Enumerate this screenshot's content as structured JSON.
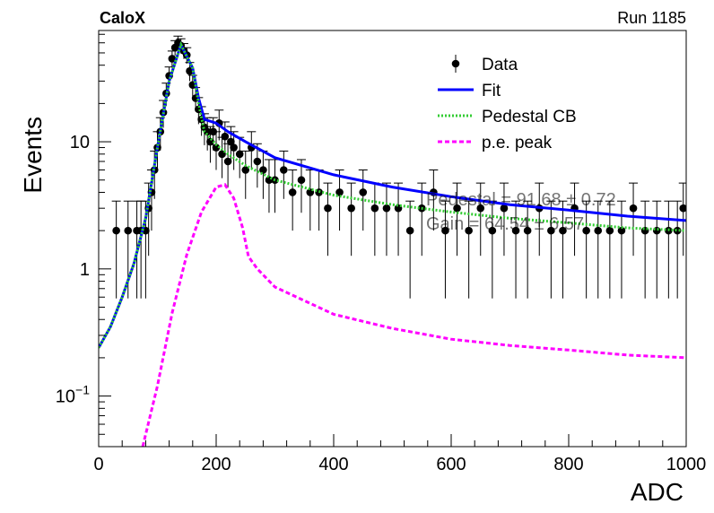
{
  "header": {
    "left_label": "CaloX",
    "right_label": "Run 1185"
  },
  "chart_data": {
    "type": "scatter",
    "xlabel": "ADC",
    "ylabel": "Events",
    "xlim": [
      0,
      1000
    ],
    "ylim": [
      0.04,
      75
    ],
    "yscale": "log",
    "grid": false,
    "legend_position": "top-right",
    "x_ticks": [
      0,
      200,
      400,
      600,
      800,
      1000
    ],
    "x_tick_labels": [
      "0",
      "200",
      "400",
      "600",
      "800",
      "1000"
    ],
    "y_ticks": [
      0.1,
      1,
      10
    ],
    "y_tick_labels": [
      {
        "base": "10",
        "exp": "−1"
      },
      {
        "base": "1",
        "exp": ""
      },
      {
        "base": "10",
        "exp": ""
      }
    ],
    "legend": [
      {
        "label": "Data",
        "kind": "marker",
        "color": "#000000"
      },
      {
        "label": "Fit",
        "kind": "line",
        "color": "#0000ff"
      },
      {
        "label": "Pedestal CB",
        "kind": "dotted",
        "color": "#33cc33"
      },
      {
        "label": "p.e. peak",
        "kind": "dashed",
        "color": "#ff00ff"
      }
    ],
    "annotations": [
      {
        "text": "Pedestal = 91.68 ± 0.72"
      },
      {
        "text": "Gain = 64.54 ± 6.57"
      }
    ],
    "series": [
      {
        "name": "Data",
        "kind": "points",
        "color": "#000000",
        "x": [
          30,
          50,
          65,
          72,
          80,
          85,
          90,
          95,
          100,
          105,
          110,
          115,
          120,
          125,
          130,
          135,
          140,
          145,
          150,
          155,
          160,
          165,
          170,
          175,
          180,
          185,
          190,
          195,
          200,
          205,
          210,
          215,
          220,
          225,
          230,
          240,
          250,
          260,
          270,
          280,
          290,
          300,
          315,
          330,
          345,
          360,
          375,
          390,
          410,
          430,
          450,
          470,
          490,
          510,
          530,
          550,
          570,
          590,
          610,
          630,
          650,
          670,
          690,
          710,
          730,
          750,
          770,
          790,
          810,
          830,
          850,
          870,
          890,
          910,
          930,
          950,
          970,
          985,
          995
        ],
        "y": [
          2,
          2,
          2,
          2,
          2,
          3,
          4,
          6,
          9,
          12,
          17,
          24,
          33,
          45,
          55,
          60,
          57,
          52,
          48,
          36,
          28,
          22,
          18,
          15,
          13,
          12,
          10,
          12,
          9,
          14,
          8,
          11,
          7,
          10,
          9,
          8,
          6,
          9,
          7,
          6,
          5,
          5,
          6,
          4,
          5,
          4,
          4,
          3,
          4,
          3,
          4,
          3,
          3,
          3,
          2,
          3,
          4,
          2,
          3,
          2,
          3,
          2,
          3,
          2,
          2,
          3,
          2,
          2,
          3,
          2,
          2,
          2,
          2,
          3,
          2,
          2,
          2,
          2,
          3
        ]
      },
      {
        "name": "Fit",
        "kind": "line",
        "color": "#0000ff",
        "x": [
          0,
          20,
          40,
          60,
          80,
          100,
          120,
          140,
          160,
          170,
          180,
          200,
          220,
          250,
          300,
          400,
          500,
          600,
          700,
          800,
          900,
          1000
        ],
        "y": [
          0.24,
          0.35,
          0.6,
          1.1,
          2.5,
          9,
          30,
          58,
          38,
          22,
          15,
          14,
          12,
          10,
          7.5,
          5.5,
          4.4,
          3.7,
          3.2,
          2.9,
          2.6,
          2.4
        ]
      },
      {
        "name": "Pedestal CB",
        "kind": "dotted",
        "color": "#33cc33",
        "x": [
          0,
          20,
          40,
          60,
          80,
          100,
          120,
          140,
          160,
          170,
          180,
          200,
          220,
          250,
          300,
          400,
          500,
          600,
          700,
          800,
          900,
          1000
        ],
        "y": [
          0.24,
          0.35,
          0.6,
          1.1,
          2.5,
          9,
          30,
          58,
          38,
          20,
          12,
          9.5,
          8,
          6.5,
          5,
          3.8,
          3.2,
          2.8,
          2.5,
          2.3,
          2.1,
          2.0
        ]
      },
      {
        "name": "p.e. peak",
        "kind": "dashed",
        "color": "#ff00ff",
        "x": [
          75,
          100,
          125,
          150,
          175,
          200,
          215,
          230,
          245,
          255,
          270,
          300,
          400,
          500,
          600,
          700,
          800,
          900,
          1000
        ],
        "y": [
          0.04,
          0.12,
          0.45,
          1.3,
          2.8,
          4.4,
          4.6,
          3.6,
          2.1,
          1.25,
          1.0,
          0.72,
          0.44,
          0.34,
          0.28,
          0.25,
          0.23,
          0.21,
          0.2
        ]
      }
    ]
  }
}
